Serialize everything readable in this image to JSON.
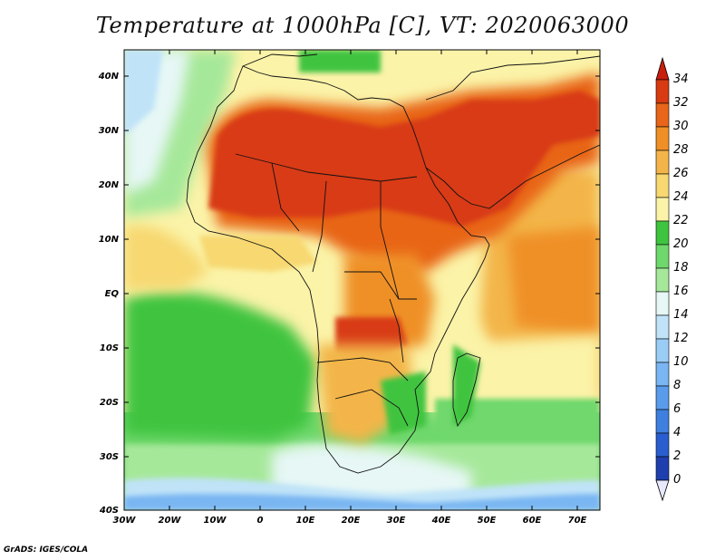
{
  "title": "Temperature at 1000hPa [C], VT: 2020063000",
  "footer": "GrADS: IGES/COLA",
  "map": {
    "lat_ticks": [
      "40N",
      "30N",
      "20N",
      "10N",
      "EQ",
      "10S",
      "20S",
      "30S",
      "40S"
    ],
    "lon_ticks": [
      "30W",
      "20W",
      "10W",
      "0",
      "10E",
      "20E",
      "30E",
      "40E",
      "50E",
      "60E",
      "70E"
    ],
    "lon_range": [
      -30,
      75
    ],
    "lat_range": [
      -40,
      45
    ]
  },
  "colorbar": {
    "labels": [
      "34",
      "32",
      "30",
      "28",
      "26",
      "24",
      "22",
      "20",
      "18",
      "16",
      "14",
      "12",
      "10",
      "8",
      "6",
      "4",
      "2",
      "0"
    ],
    "colors": [
      "#1a1a6e",
      "#1f3fae",
      "#2a5ed0",
      "#3f7fe0",
      "#5a9ceb",
      "#79b6f2",
      "#9acdf6",
      "#c0e3f8",
      "#e6f7f5",
      "#a6e89a",
      "#6fd86c",
      "#3fc43f",
      "#fbf3a8",
      "#f7d871",
      "#f3b54a",
      "#ef9026",
      "#e86519",
      "#d83a12",
      "#c81e0b"
    ]
  }
}
